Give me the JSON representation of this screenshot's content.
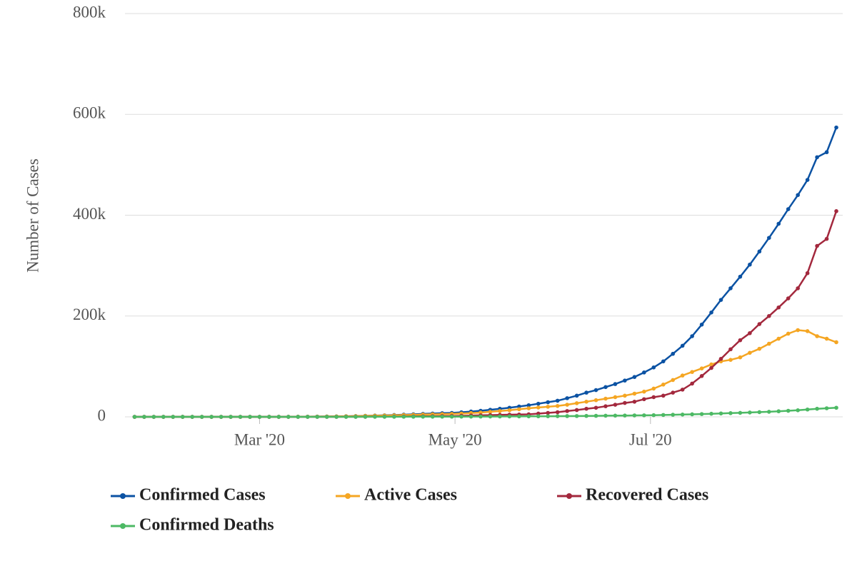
{
  "chart_data": {
    "type": "line",
    "y_label": "Number of Cases",
    "x": [
      22,
      25,
      28,
      31,
      34,
      37,
      40,
      43,
      46,
      49,
      52,
      55,
      58,
      61,
      64,
      67,
      70,
      73,
      76,
      79,
      82,
      85,
      88,
      91,
      94,
      97,
      100,
      103,
      106,
      109,
      112,
      115,
      118,
      121,
      124,
      127,
      130,
      133,
      136,
      139,
      142,
      145,
      148,
      151,
      154,
      157,
      160,
      163,
      166,
      169,
      172,
      175,
      178,
      181,
      184,
      187,
      190,
      193,
      196,
      199,
      202,
      205,
      208,
      211,
      214,
      217,
      220,
      223,
      226,
      229,
      232,
      235,
      238,
      241
    ],
    "series": [
      {
        "name": "Confirmed Cases",
        "color": "#0b52a3",
        "values": [
          0,
          0,
          0,
          0,
          0,
          0,
          0,
          0,
          0,
          0,
          0,
          0,
          0,
          10,
          20,
          50,
          100,
          200,
          300,
          500,
          700,
          900,
          1200,
          1500,
          2000,
          2500,
          3000,
          3600,
          4300,
          5000,
          5800,
          6500,
          7200,
          7800,
          9000,
          10500,
          12000,
          14000,
          16000,
          18000,
          20500,
          23000,
          26000,
          29000,
          32000,
          37000,
          42000,
          48000,
          53000,
          59000,
          65000,
          72000,
          79000,
          88000,
          98000,
          110000,
          125000,
          141000,
          160000,
          183000,
          207000,
          232000,
          255000,
          278000,
          302000,
          328000,
          355000,
          383000,
          412000,
          440000,
          470000,
          515000,
          525000,
          574000
        ]
      },
      {
        "name": "Active Cases",
        "color": "#f5a623",
        "values": [
          0,
          0,
          0,
          0,
          0,
          0,
          0,
          0,
          0,
          0,
          0,
          0,
          0,
          10,
          20,
          50,
          100,
          200,
          300,
          500,
          700,
          900,
          1100,
          1400,
          1800,
          2200,
          2600,
          3000,
          3500,
          4000,
          4500,
          5000,
          5400,
          5800,
          6500,
          7500,
          8500,
          10000,
          11500,
          13000,
          15000,
          17000,
          18500,
          20000,
          21500,
          24000,
          27000,
          30000,
          33000,
          36000,
          39000,
          42000,
          46000,
          50000,
          56000,
          64000,
          73000,
          82000,
          89000,
          96000,
          104000,
          110000,
          113000,
          118000,
          127000,
          135000,
          145000,
          155000,
          165000,
          172000,
          170000,
          160000,
          155000,
          148000
        ]
      },
      {
        "name": "Recovered Cases",
        "color": "#a3283d",
        "values": [
          0,
          0,
          0,
          0,
          0,
          0,
          0,
          0,
          0,
          0,
          0,
          0,
          0,
          0,
          0,
          0,
          0,
          0,
          0,
          0,
          0,
          0,
          100,
          100,
          150,
          250,
          300,
          450,
          600,
          800,
          1000,
          1200,
          1400,
          1600,
          2000,
          2500,
          3000,
          3400,
          3800,
          4200,
          4600,
          5000,
          6400,
          7800,
          9200,
          11500,
          13500,
          16000,
          18000,
          21000,
          24000,
          27500,
          30000,
          35000,
          39000,
          42000,
          48000,
          54000,
          66000,
          81000,
          97000,
          115000,
          134000,
          152000,
          166000,
          184000,
          200000,
          217000,
          235000,
          255000,
          285000,
          339000,
          353000,
          408000
        ]
      },
      {
        "name": "Confirmed Deaths",
        "color": "#4cb964",
        "values": [
          0,
          0,
          0,
          0,
          0,
          0,
          0,
          0,
          0,
          0,
          0,
          0,
          0,
          0,
          0,
          0,
          0,
          0,
          0,
          0,
          0,
          0,
          0,
          50,
          80,
          100,
          120,
          150,
          180,
          220,
          260,
          300,
          350,
          400,
          450,
          500,
          550,
          620,
          700,
          800,
          900,
          1000,
          1100,
          1200,
          1300,
          1450,
          1600,
          1800,
          2000,
          2200,
          2400,
          2600,
          2800,
          3000,
          3300,
          3700,
          4100,
          4500,
          5000,
          5500,
          6100,
          6700,
          7300,
          7900,
          8600,
          9300,
          10000,
          11000,
          12000,
          13000,
          14500,
          16000,
          17000,
          18000
        ]
      }
    ],
    "xlim": [
      19,
      243
    ],
    "xticks": [
      {
        "value": 61,
        "label": "Mar '20"
      },
      {
        "value": 122,
        "label": "May '20"
      },
      {
        "value": 183,
        "label": "Jul '20"
      }
    ],
    "ylim": [
      0,
      800000
    ],
    "yticks": [
      {
        "value": 0,
        "label": "0"
      },
      {
        "value": 200000,
        "label": "200k"
      },
      {
        "value": 400000,
        "label": "400k"
      },
      {
        "value": 600000,
        "label": "600k"
      },
      {
        "value": 800000,
        "label": "800k"
      }
    ],
    "grid": true,
    "legend": "bottom"
  }
}
